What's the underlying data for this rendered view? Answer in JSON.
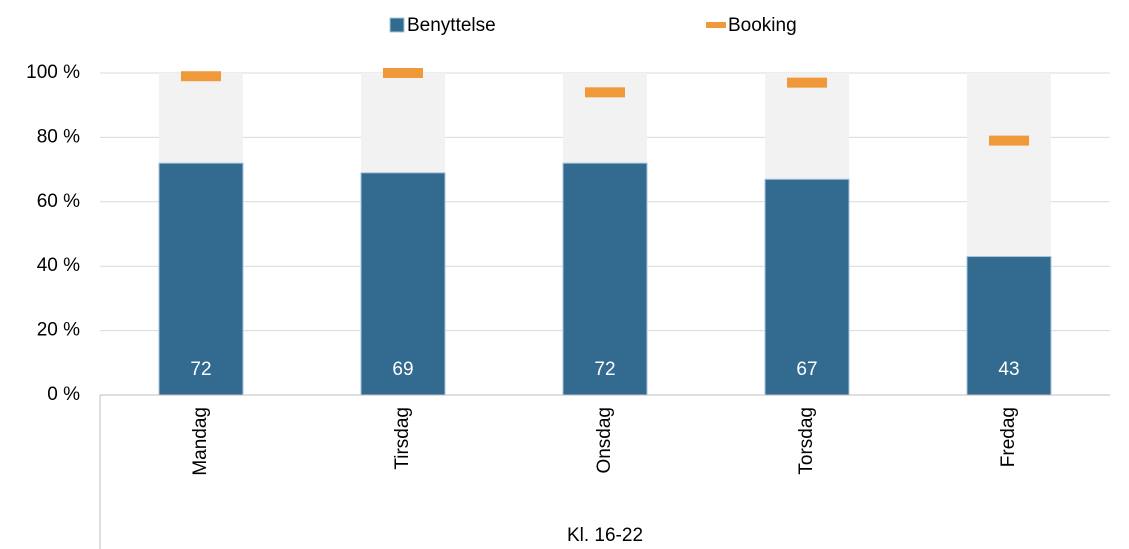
{
  "chart_data": {
    "type": "bar",
    "categories": [
      "Mandag",
      "Tirsdag",
      "Onsdag",
      "Torsdag",
      "Fredag"
    ],
    "category_group": "Kl. 16-22",
    "series": [
      {
        "name": "Benyttelse",
        "color": "#336a90",
        "values": [
          72,
          69,
          72,
          67,
          43
        ]
      },
      {
        "name": "Booking",
        "color": "#f0993a",
        "values": [
          99,
          100,
          94,
          97,
          79
        ]
      }
    ],
    "ylim": [
      0,
      100
    ],
    "yticks": [
      {
        "value": 0,
        "label": "0 %"
      },
      {
        "value": 20,
        "label": "20 %"
      },
      {
        "value": 40,
        "label": "40 %"
      },
      {
        "value": 60,
        "label": "60 %"
      },
      {
        "value": 80,
        "label": "80 %"
      },
      {
        "value": 100,
        "label": "100 %"
      }
    ],
    "grid": true,
    "legend": "top"
  }
}
